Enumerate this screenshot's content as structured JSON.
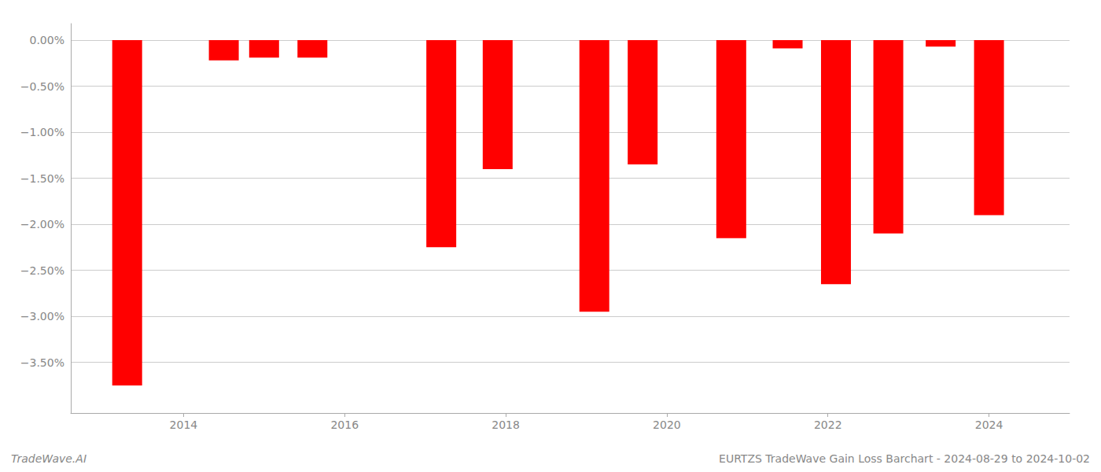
{
  "chart_data": {
    "type": "bar",
    "x": [
      2013.3,
      2014.5,
      2015.0,
      2015.6,
      2017.2,
      2017.9,
      2019.1,
      2019.7,
      2020.8,
      2021.5,
      2022.1,
      2022.75,
      2023.4,
      2024.0
    ],
    "values": [
      -3.75,
      -0.22,
      -0.19,
      -0.19,
      -2.25,
      -1.4,
      -2.95,
      -1.35,
      -2.15,
      -0.09,
      -2.65,
      -2.1,
      -0.07,
      -1.9
    ],
    "color": "#ff0000",
    "xlim": [
      2012.6,
      2025.0
    ],
    "xticks": [
      2014,
      2016,
      2018,
      2020,
      2022,
      2024
    ],
    "ylim": [
      -4.05,
      0.18
    ],
    "yticks": [
      {
        "value": 0.0,
        "label": "0.00%"
      },
      {
        "value": -0.5,
        "label": "−0.50%"
      },
      {
        "value": -1.0,
        "label": "−1.00%"
      },
      {
        "value": -1.5,
        "label": "−1.50%"
      },
      {
        "value": -2.0,
        "label": "−2.00%"
      },
      {
        "value": -2.5,
        "label": "−2.50%"
      },
      {
        "value": -3.0,
        "label": "−3.00%"
      },
      {
        "value": -3.5,
        "label": "−3.50%"
      }
    ],
    "grid": true,
    "annotations": [
      {
        "text": "TradeWave.AI"
      },
      {
        "text": "EURTZS TradeWave Gain Loss Barchart - 2024-08-29 to 2024-10-02"
      }
    ]
  }
}
